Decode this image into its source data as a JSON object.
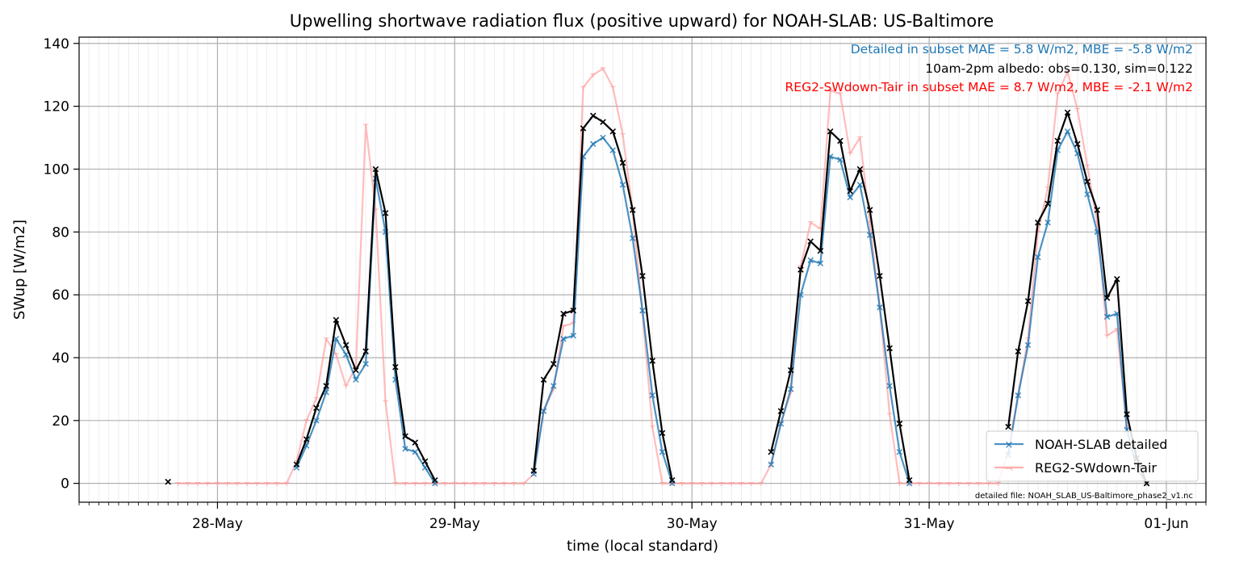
{
  "chart_data": {
    "type": "line",
    "title": "Upwelling shortwave radiation flux (positive upward) for NOAH-SLAB: US-Baltimore",
    "xlabel": "time (local standard)",
    "ylabel": "SWup [W/m2]",
    "ylim": [
      -6,
      142
    ],
    "yticks": [
      0,
      20,
      40,
      60,
      80,
      100,
      120,
      140
    ],
    "xlim_hours": [
      -14,
      100
    ],
    "xticks": [
      {
        "label": "28-May",
        "hour": 0
      },
      {
        "label": "29-May",
        "hour": 24
      },
      {
        "label": "30-May",
        "hour": 48
      },
      {
        "label": "31-May",
        "hour": 72
      },
      {
        "label": "01-Jun",
        "hour": 96
      }
    ],
    "grid": true,
    "legend_position": "lower right",
    "annotations": [
      {
        "text": "Detailed in subset MAE = 5.8 W/m2, MBE = -5.8 W/m2",
        "color": "#1f77b4"
      },
      {
        "text": "10am-2pm albedo: obs=0.130, sim=0.122",
        "color": "#000000"
      },
      {
        "text": "REG2-SWdown-Tair in subset MAE = 8.7 W/m2, MBE = -2.1 W/m2",
        "color": "#ff0000"
      }
    ],
    "footnote": "detailed file: NOAH_SLAB_US-Baltimore_phase2_v1.nc",
    "series": [
      {
        "name": "REG2-SWdown-Tair",
        "color": "#ff9999",
        "points": [
          [
            -4,
            0
          ],
          [
            -3,
            0
          ],
          [
            -2,
            0
          ],
          [
            -1,
            0
          ],
          [
            0,
            0
          ],
          [
            1,
            0
          ],
          [
            2,
            0
          ],
          [
            3,
            0
          ],
          [
            4,
            0
          ],
          [
            5,
            0
          ],
          [
            6,
            0
          ],
          [
            7,
            0
          ],
          [
            8,
            7
          ],
          [
            9,
            20
          ],
          [
            10,
            27
          ],
          [
            11,
            46
          ],
          [
            12,
            41
          ],
          [
            13,
            31
          ],
          [
            14,
            37
          ],
          [
            15,
            114
          ],
          [
            16,
            87
          ],
          [
            17,
            26
          ],
          [
            18,
            0
          ],
          [
            19,
            0
          ],
          [
            20,
            0
          ],
          [
            21,
            0
          ],
          [
            22,
            0
          ],
          [
            23,
            0
          ],
          [
            24,
            0
          ],
          [
            25,
            0
          ],
          [
            26,
            0
          ],
          [
            27,
            0
          ],
          [
            28,
            0
          ],
          [
            29,
            0
          ],
          [
            30,
            0
          ],
          [
            31,
            0
          ],
          [
            32,
            3
          ],
          [
            33,
            23
          ],
          [
            34,
            30
          ],
          [
            35,
            50
          ],
          [
            36,
            51
          ],
          [
            37,
            126
          ],
          [
            38,
            130
          ],
          [
            39,
            132
          ],
          [
            40,
            126
          ],
          [
            41,
            111
          ],
          [
            42,
            87
          ],
          [
            43,
            54
          ],
          [
            44,
            18
          ],
          [
            45,
            0
          ],
          [
            46,
            0
          ],
          [
            47,
            0
          ],
          [
            48,
            0
          ],
          [
            49,
            0
          ],
          [
            50,
            0
          ],
          [
            51,
            0
          ],
          [
            52,
            0
          ],
          [
            53,
            0
          ],
          [
            54,
            0
          ],
          [
            55,
            0
          ],
          [
            56,
            6
          ],
          [
            57,
            19
          ],
          [
            58,
            29
          ],
          [
            59,
            69
          ],
          [
            60,
            83
          ],
          [
            61,
            81
          ],
          [
            62,
            125
          ],
          [
            63,
            124
          ],
          [
            64,
            105
          ],
          [
            65,
            110
          ],
          [
            66,
            83
          ],
          [
            67,
            56
          ],
          [
            68,
            22
          ],
          [
            69,
            0
          ],
          [
            70,
            0
          ],
          [
            71,
            0
          ],
          [
            72,
            0
          ],
          [
            73,
            0
          ],
          [
            74,
            0
          ],
          [
            75,
            0
          ],
          [
            76,
            0
          ],
          [
            77,
            0
          ],
          [
            78,
            0
          ],
          [
            79,
            0
          ],
          [
            80,
            10
          ],
          [
            81,
            28
          ],
          [
            82,
            46
          ],
          [
            83,
            80
          ],
          [
            84,
            94
          ],
          [
            85,
            124
          ],
          [
            86,
            131
          ],
          [
            87,
            119
          ],
          [
            88,
            101
          ],
          [
            89,
            83
          ],
          [
            90,
            47
          ],
          [
            91,
            49
          ],
          [
            92,
            18
          ],
          [
            93,
            4
          ],
          [
            94,
            0
          ]
        ]
      },
      {
        "name": "NOAH-SLAB detailed",
        "color": "#1f77b4",
        "points": [
          [
            8,
            5
          ],
          [
            9,
            12
          ],
          [
            10,
            20
          ],
          [
            11,
            29
          ],
          [
            12,
            46
          ],
          [
            13,
            41
          ],
          [
            14,
            33
          ],
          [
            15,
            38
          ],
          [
            16,
            97
          ],
          [
            17,
            80
          ],
          [
            18,
            33
          ],
          [
            19,
            11
          ],
          [
            20,
            10
          ],
          [
            21,
            5
          ],
          [
            22,
            0
          ],
          [
            32,
            3
          ],
          [
            33,
            23
          ],
          [
            34,
            31
          ],
          [
            35,
            46
          ],
          [
            36,
            47
          ],
          [
            37,
            104
          ],
          [
            38,
            108
          ],
          [
            39,
            110
          ],
          [
            40,
            106
          ],
          [
            41,
            95
          ],
          [
            42,
            78
          ],
          [
            43,
            55
          ],
          [
            44,
            28
          ],
          [
            45,
            10
          ],
          [
            46,
            0
          ],
          [
            56,
            6
          ],
          [
            57,
            19
          ],
          [
            58,
            30
          ],
          [
            59,
            60
          ],
          [
            60,
            71
          ],
          [
            61,
            70
          ],
          [
            62,
            104
          ],
          [
            63,
            103
          ],
          [
            64,
            91
          ],
          [
            65,
            95
          ],
          [
            66,
            79
          ],
          [
            67,
            56
          ],
          [
            68,
            31
          ],
          [
            69,
            10
          ],
          [
            70,
            0
          ],
          [
            80,
            9
          ],
          [
            81,
            28
          ],
          [
            82,
            44
          ],
          [
            83,
            72
          ],
          [
            84,
            83
          ],
          [
            85,
            106
          ],
          [
            86,
            112
          ],
          [
            87,
            105
          ],
          [
            88,
            92
          ],
          [
            89,
            80
          ],
          [
            90,
            53
          ],
          [
            91,
            54
          ],
          [
            92,
            17
          ],
          [
            93,
            5
          ],
          [
            94,
            0
          ]
        ]
      },
      {
        "name": "",
        "color": "#000000",
        "points": [
          [
            -5,
            0.5
          ],
          [
            8,
            6
          ],
          [
            9,
            14
          ],
          [
            10,
            24
          ],
          [
            11,
            31
          ],
          [
            12,
            52
          ],
          [
            13,
            44
          ],
          [
            14,
            36
          ],
          [
            15,
            42
          ],
          [
            16,
            100
          ],
          [
            17,
            86
          ],
          [
            18,
            37
          ],
          [
            19,
            15
          ],
          [
            20,
            13
          ],
          [
            21,
            7
          ],
          [
            22,
            1
          ],
          [
            32,
            4
          ],
          [
            33,
            33
          ],
          [
            34,
            38
          ],
          [
            35,
            54
          ],
          [
            36,
            55
          ],
          [
            37,
            113
          ],
          [
            38,
            117
          ],
          [
            39,
            115
          ],
          [
            40,
            112
          ],
          [
            41,
            102
          ],
          [
            42,
            87
          ],
          [
            43,
            66
          ],
          [
            44,
            39
          ],
          [
            45,
            16
          ],
          [
            46,
            1
          ],
          [
            56,
            10
          ],
          [
            57,
            23
          ],
          [
            58,
            36
          ],
          [
            59,
            68
          ],
          [
            60,
            77
          ],
          [
            61,
            74
          ],
          [
            62,
            112
          ],
          [
            63,
            109
          ],
          [
            64,
            93
          ],
          [
            65,
            100
          ],
          [
            66,
            87
          ],
          [
            67,
            66
          ],
          [
            68,
            43
          ],
          [
            69,
            19
          ],
          [
            70,
            1
          ],
          [
            80,
            18
          ],
          [
            81,
            42
          ],
          [
            82,
            58
          ],
          [
            83,
            83
          ],
          [
            84,
            89
          ],
          [
            85,
            109
          ],
          [
            86,
            118
          ],
          [
            87,
            108
          ],
          [
            88,
            96
          ],
          [
            89,
            87
          ],
          [
            90,
            59
          ],
          [
            91,
            65
          ],
          [
            92,
            22
          ],
          [
            93,
            8
          ],
          [
            94,
            0
          ]
        ]
      }
    ]
  }
}
